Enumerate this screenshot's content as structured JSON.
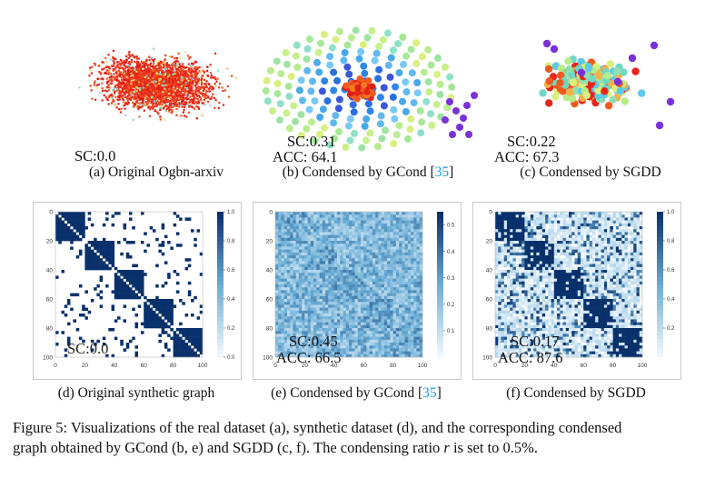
{
  "top_row": {
    "panels": [
      {
        "caption": "(a) Original Ogbn-arxiv",
        "metrics": [
          "SC:0.0"
        ]
      },
      {
        "caption_prefix": "(b) Condensed by GCond [",
        "citation": "35",
        "caption_suffix": "]",
        "metrics": [
          "SC:0.31",
          "ACC: 64.1"
        ]
      },
      {
        "caption": "(c) Condensed by SGDD",
        "metrics": [
          "SC:0.22",
          "ACC: 67.3"
        ]
      }
    ]
  },
  "bottom_row": {
    "panels": [
      {
        "caption": "(d) Original synthetic graph",
        "metrics": [
          "SC:0.0"
        ]
      },
      {
        "caption_prefix": "(e) Condensed by GCond [",
        "citation": "35",
        "caption_suffix": "]",
        "metrics": [
          "SC:0.45",
          "ACC: 66.5"
        ]
      },
      {
        "caption": "(f) Condensed by SGDD",
        "metrics": [
          "SC:0.17",
          "ACC: 87.6"
        ]
      }
    ]
  },
  "chart_data": [
    {
      "type": "heatmap",
      "panel": "d",
      "x_ticks": [
        "0",
        "20",
        "40",
        "60",
        "80",
        "100"
      ],
      "y_ticks": [
        "0",
        "20",
        "40",
        "60",
        "80",
        "100"
      ],
      "colorbar_ticks": [
        "1.0",
        "0.8",
        "0.6",
        "0.4",
        "0.2",
        "0.0"
      ],
      "colorbar_range": [
        0.0,
        1.0
      ],
      "blocks": 5,
      "matrix_size": 100
    },
    {
      "type": "heatmap",
      "panel": "e",
      "x_ticks": [
        "0",
        "20",
        "40",
        "60",
        "80",
        "100"
      ],
      "y_ticks": [
        "0",
        "20",
        "40",
        "60",
        "80",
        "100"
      ],
      "colorbar_ticks": [
        "0.5",
        "0.4",
        "0.3",
        "0.2",
        "0.1"
      ],
      "colorbar_range": [
        0.0,
        0.55
      ],
      "blocks": 5,
      "matrix_size": 100
    },
    {
      "type": "heatmap",
      "panel": "f",
      "x_ticks": [
        "0",
        "20",
        "40",
        "60",
        "80",
        "100"
      ],
      "y_ticks": [
        "0",
        "20",
        "40",
        "60",
        "80",
        "100"
      ],
      "colorbar_ticks": [
        "1.0",
        "0.8",
        "0.6",
        "0.4",
        "0.2"
      ],
      "colorbar_range": [
        0.0,
        1.0
      ],
      "blocks": 5,
      "matrix_size": 100
    }
  ],
  "figure_caption": {
    "line1": "Figure 5: Visualizations of the real dataset (a), synthetic dataset (d), and the corresponding condensed",
    "line2_prefix": "graph obtained by GCond (b, e) and SGDD  (c, f). The condensing ratio ",
    "line2_var": "r",
    "line2_suffix": " is set to 0.5%."
  },
  "colors": {
    "heatmap_dark": "#08306b",
    "node_red": "#e8241b",
    "node_purple": "#7a32d8"
  }
}
